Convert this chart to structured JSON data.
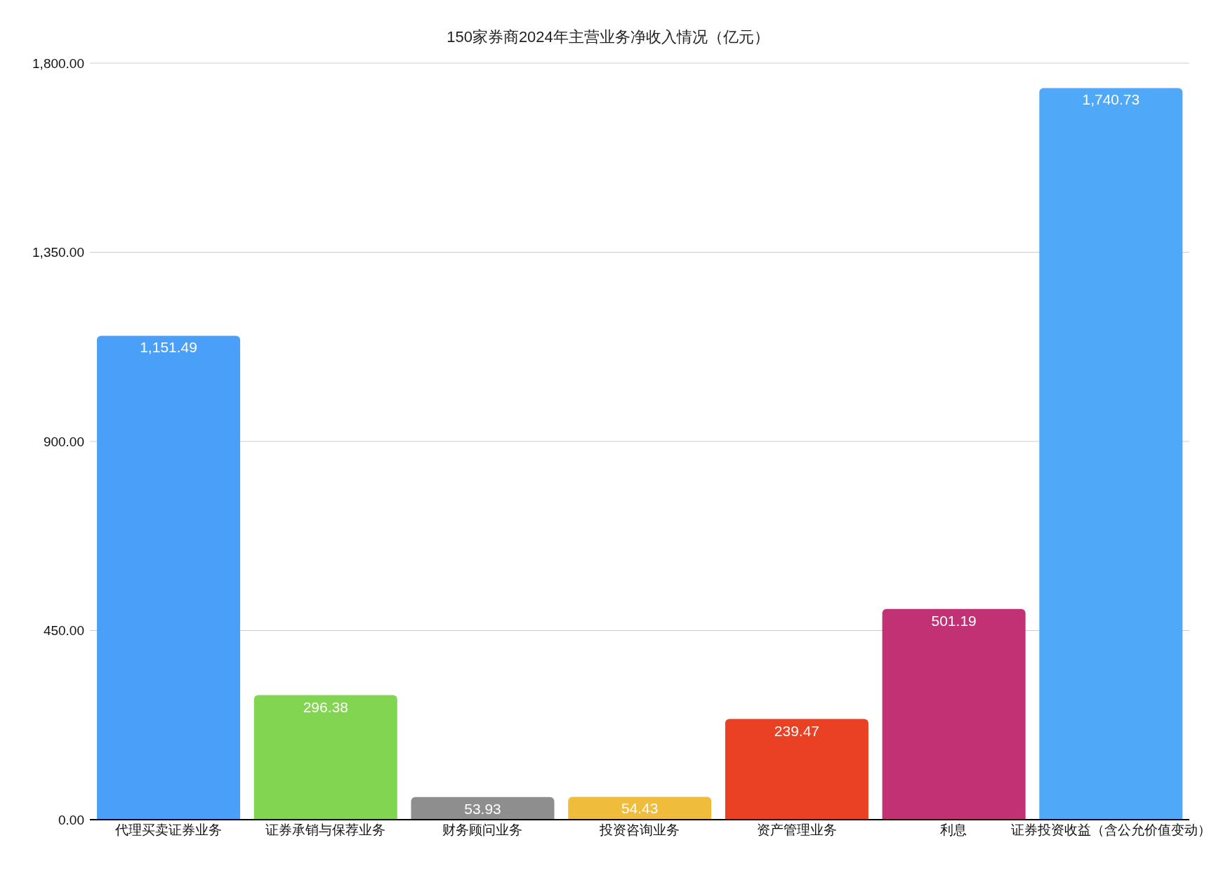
{
  "chart_data": {
    "type": "bar",
    "title": "150家券商2024年主营业务净收入情况（亿元）",
    "categories": [
      "代理买卖证券业务",
      "证券承销与保荐业务",
      "财务顾问业务",
      "投资咨询业务",
      "资产管理业务",
      "利息",
      "证券投资收益（含公允价值变动）"
    ],
    "values": [
      1151.49,
      296.38,
      53.93,
      54.43,
      239.47,
      501.19,
      1740.73
    ],
    "colors": [
      "#4a9ff8",
      "#82d550",
      "#8e8e8e",
      "#f0bc3c",
      "#ea4125",
      "#c23173",
      "#4fa8f8"
    ],
    "value_labels": [
      "1,151.49",
      "296.38",
      "53.93",
      "54.43",
      "239.47",
      "501.19",
      "1,740.73"
    ],
    "ylim": [
      0,
      1800
    ],
    "yticks": [
      {
        "value": 0,
        "label": "0.00"
      },
      {
        "value": 450,
        "label": "450.00"
      },
      {
        "value": 900,
        "label": "900.00"
      },
      {
        "value": 1350,
        "label": "1,350.00"
      },
      {
        "value": 1800,
        "label": "1,800.00"
      }
    ],
    "grid": "y"
  }
}
